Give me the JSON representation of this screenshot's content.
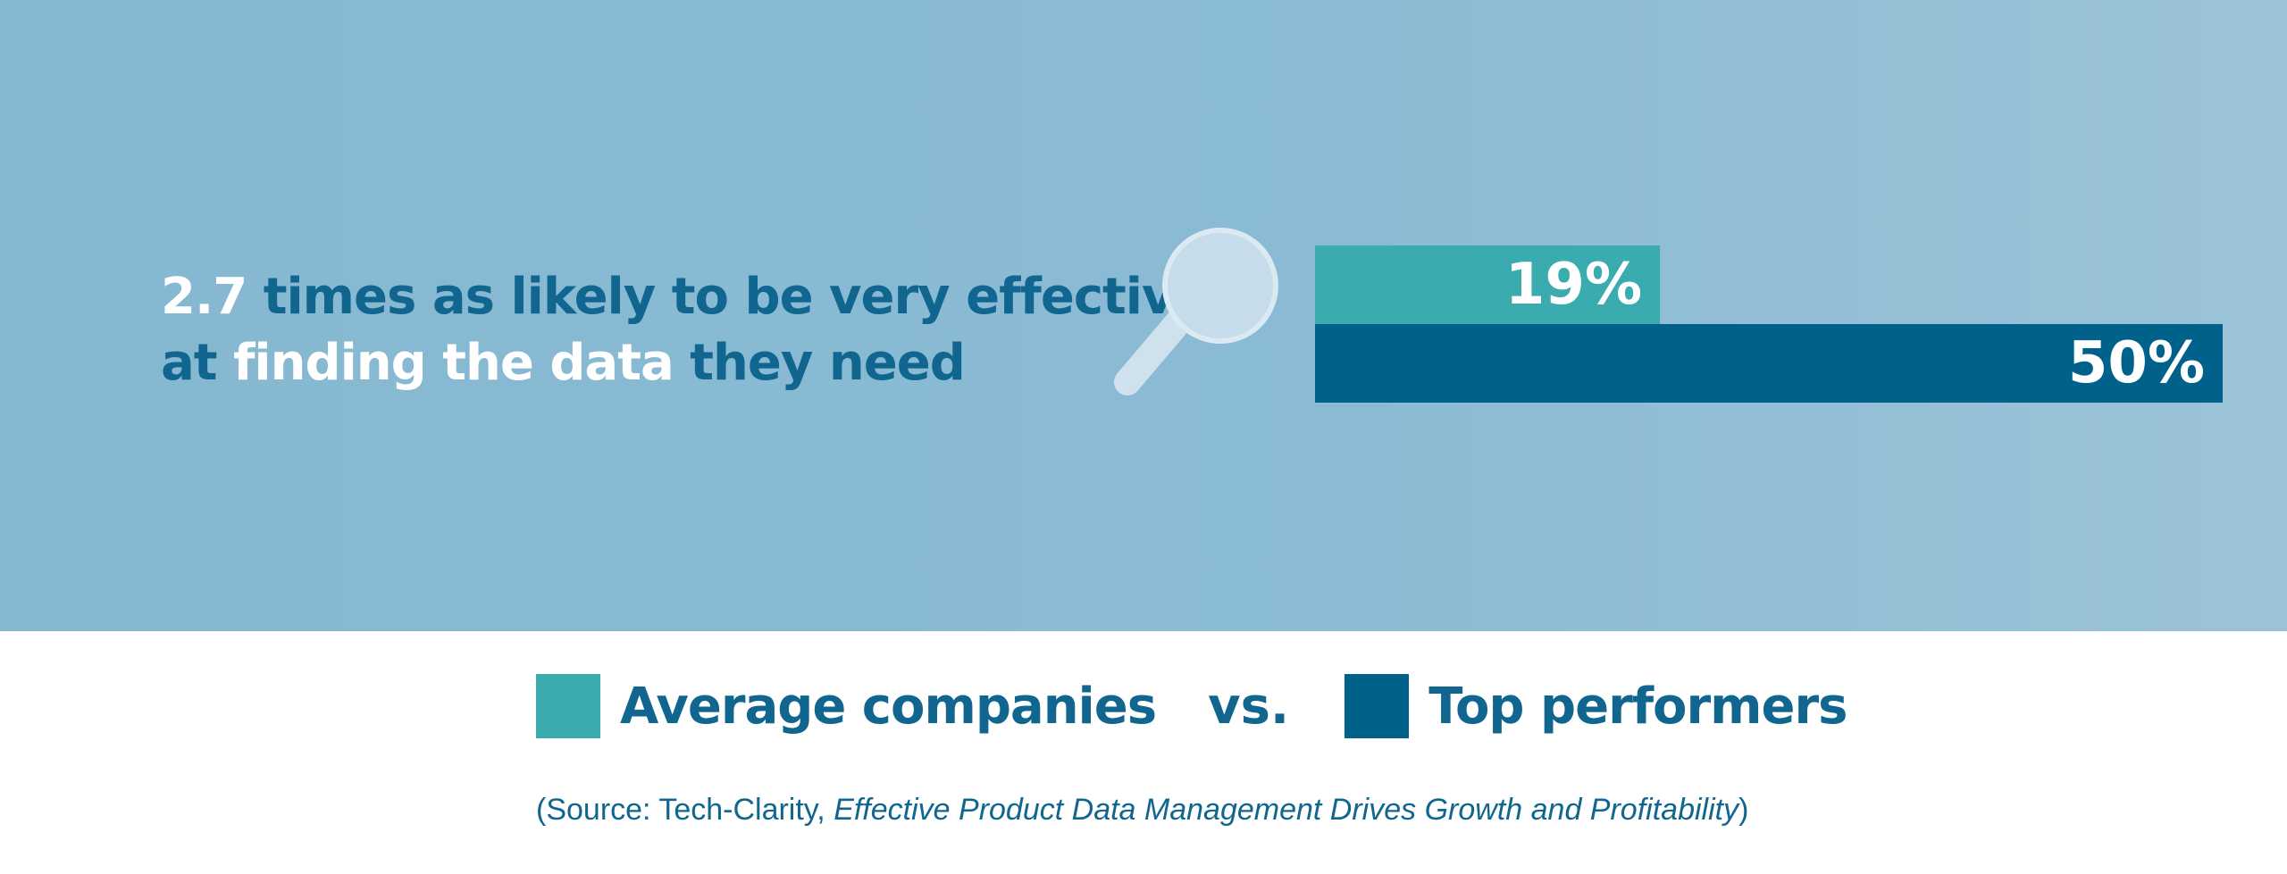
{
  "headline": {
    "w1": "2.7",
    "t1": " times as likely to be very effective",
    "t2": "at ",
    "w2": "finding the data",
    "t3": " they need"
  },
  "icon": "magnifying-glass-icon",
  "legend": {
    "average_label": "Average companies",
    "vs_label": "vs.",
    "top_label": "Top performers"
  },
  "source": {
    "prefix": "(Source: Tech-Clarity, ",
    "title": "Effective Product Data Management Drives Growth and Profitability",
    "suffix": ")"
  },
  "colors": {
    "average": "#3aabaf",
    "top": "#00628b",
    "text": "#10668f",
    "hero_bg": "#8bbbd4"
  },
  "chart_data": {
    "type": "bar",
    "orientation": "horizontal",
    "unit": "%",
    "xlim": [
      0,
      50
    ],
    "series": [
      {
        "key": "average",
        "name": "Average companies",
        "value": 19,
        "label": "19%"
      },
      {
        "key": "top",
        "name": "Top performers",
        "value": 50,
        "label": "50%"
      }
    ]
  }
}
